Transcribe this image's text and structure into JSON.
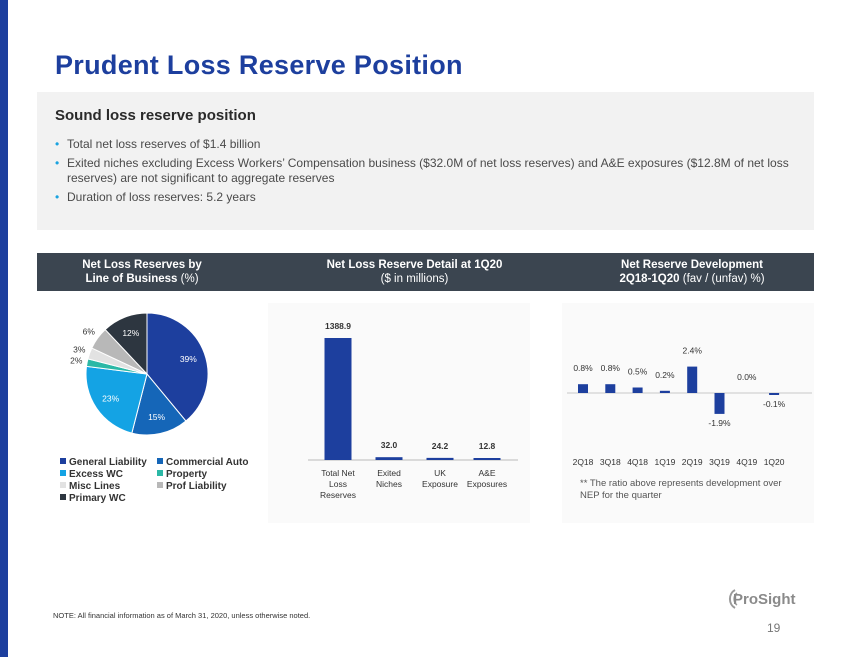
{
  "title": "Prudent Loss Reserve Position",
  "summary": {
    "heading": "Sound loss reserve position",
    "bullets": [
      "Total net loss reserves of $1.4 billion",
      "Exited niches excluding Excess Workers’ Compensation business ($32.0M of net loss reserves) and A&E exposures ($12.8M of net loss reserves) are not significant to aggregate reserves",
      "Duration of loss reserves: 5.2 years"
    ]
  },
  "headers": [
    {
      "line1": "Net Loss Reserves by",
      "line2a": "Line of Business",
      "line2b": "(%)"
    },
    {
      "line1": "Net Loss Reserve Detail at 1Q20",
      "line2": "($ in millions)"
    },
    {
      "line1": "Net Reserve Development",
      "line2a": "2Q18-1Q20",
      "line2b": "(fav / (unfav) %)"
    }
  ],
  "dev_footnote": "** The ratio above represents development over NEP for the quarter",
  "note": "NOTE:  All financial information as of March 31, 2020, unless otherwise noted.",
  "logo": "ProSight",
  "page_number": "19",
  "colors": {
    "brand": "#1d3f9e",
    "bar": "#1d3f9e",
    "accent": "#1aa3e0"
  },
  "chart_data": [
    {
      "type": "pie",
      "title": "Net Loss Reserves by Line of Business (%)",
      "slices": [
        {
          "label": "General Liability",
          "value": 39,
          "color": "#1d3f9e"
        },
        {
          "label": "Commercial Auto",
          "value": 15,
          "color": "#1566b8"
        },
        {
          "label": "Excess WC",
          "value": 23,
          "color": "#14a3e4"
        },
        {
          "label": "Property",
          "value": 2,
          "color": "#2bb8a6"
        },
        {
          "label": "Misc Lines",
          "value": 3,
          "color": "#e2e2e2"
        },
        {
          "label": "Prof Liability",
          "value": 6,
          "color": "#b8b8b8"
        },
        {
          "label": "Primary WC",
          "value": 12,
          "color": "#2d3640"
        }
      ],
      "legend_columns": [
        [
          "General Liability",
          "Excess WC",
          "Misc Lines",
          "Primary WC"
        ],
        [
          "Commercial Auto",
          "Property",
          "Prof Liability"
        ]
      ]
    },
    {
      "type": "bar",
      "title": "Net Loss Reserve Detail at 1Q20",
      "categories": [
        [
          "Total Net",
          "Loss",
          "Reserves"
        ],
        [
          "Exited",
          "Niches"
        ],
        [
          "UK",
          "Exposure"
        ],
        [
          "A&E",
          "Exposures"
        ]
      ],
      "values": [
        1388.9,
        32.0,
        24.2,
        12.8
      ],
      "value_labels": [
        "1388.9",
        "32.0",
        "24.2",
        "12.8"
      ],
      "ylim": [
        0,
        1388.9
      ]
    },
    {
      "type": "bar",
      "title": "Net Reserve Development",
      "categories": [
        "2Q18",
        "3Q18",
        "4Q18",
        "1Q19",
        "2Q19",
        "3Q19",
        "4Q19",
        "1Q20"
      ],
      "values": [
        0.8,
        0.8,
        0.5,
        0.2,
        2.4,
        -1.9,
        0.0,
        -0.1
      ],
      "value_labels": [
        "0.8%",
        "0.8%",
        "0.5%",
        "0.2%",
        "2.4%",
        "-1.9%",
        "0.0%",
        "-0.1%"
      ]
    }
  ]
}
